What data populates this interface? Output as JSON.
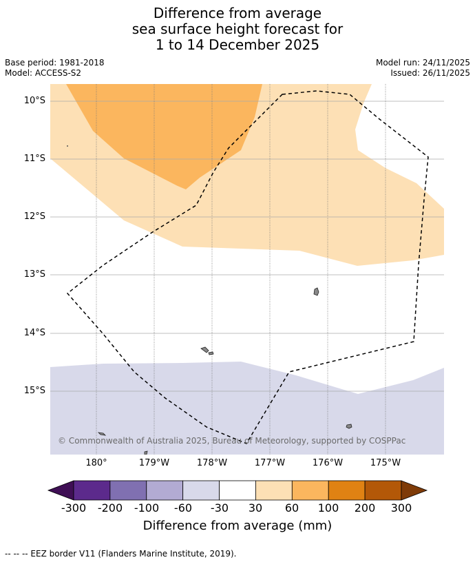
{
  "title": {
    "line1": "Difference from average",
    "line2": "sea surface height forecast for",
    "line3": "1 to 14 December 2025"
  },
  "meta": {
    "base_period": "Base period: 1981-2018",
    "model": "Model: ACCESS-S2",
    "model_run": "Model run: 24/11/2025",
    "issued": "Issued: 26/11/2025"
  },
  "map": {
    "lat_labels": [
      "10°S",
      "11°S",
      "12°S",
      "13°S",
      "14°S",
      "15°S"
    ],
    "lon_labels": [
      "180°",
      "179°W",
      "178°W",
      "177°W",
      "176°W",
      "175°W"
    ],
    "credit": "© Commonwealth of Australia 2025, Bureau of Meteorology, supported by COSPPac",
    "colors": {
      "band_30_60": "#fde0b5",
      "band_60_100": "#fbb65e",
      "band_m60_m30": "#d8d9ea",
      "land": "#888888",
      "eez": "#000000"
    }
  },
  "colorbar": {
    "ticks": [
      "-300",
      "-200",
      "-100",
      "-60",
      "-30",
      "30",
      "60",
      "100",
      "200",
      "300"
    ],
    "colors": [
      "#3f0f55",
      "#5c2a8c",
      "#8070b1",
      "#b2abd3",
      "#d8d9ea",
      "#ffffff",
      "#fde0b5",
      "#fbb65e",
      "#e08213",
      "#b35808",
      "#7f3b08"
    ],
    "label": "Difference from average (mm)"
  },
  "footnote": "--  --  -- EEZ border V11 (Flanders Marine Institute, 2019)."
}
